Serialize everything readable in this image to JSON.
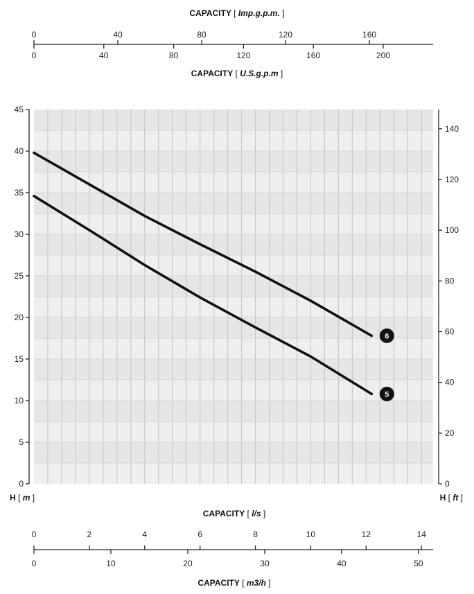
{
  "chart_data": {
    "type": "line",
    "title": "",
    "axes": {
      "imp_gpm": {
        "label_prefix": "CAPACITY",
        "label_unit": "Imp.g.p.m.",
        "ticks": [
          "0",
          "40",
          "80",
          "120",
          "160"
        ],
        "range": [
          0,
          190.4
        ]
      },
      "us_gpm": {
        "label_prefix": "CAPACITY",
        "label_unit": "U.S.g.p.m",
        "ticks": [
          "0",
          "40",
          "80",
          "120",
          "160",
          "200"
        ],
        "range": [
          0,
          228.6
        ]
      },
      "head_m": {
        "label_prefix": "H",
        "label_unit": "m",
        "ticks": [
          "0",
          "5",
          "10",
          "15",
          "20",
          "25",
          "30",
          "35",
          "40",
          "45"
        ],
        "range": [
          0,
          45
        ]
      },
      "head_ft": {
        "label_prefix": "H",
        "label_unit": "ft",
        "ticks": [
          "0",
          "20",
          "40",
          "60",
          "80",
          "100",
          "120",
          "140"
        ],
        "range": [
          0,
          147.6
        ]
      },
      "l_s": {
        "label_prefix": "CAPACITY",
        "label_unit": "l/s",
        "ticks": [
          "0",
          "2",
          "4",
          "6",
          "8",
          "10",
          "12",
          "14"
        ],
        "range": [
          0,
          14.42
        ]
      },
      "m3_h": {
        "label_prefix": "CAPACITY",
        "label_unit": "m3/h",
        "ticks": [
          "0",
          "10",
          "20",
          "30",
          "40",
          "50"
        ],
        "range": [
          0,
          51.9
        ]
      }
    },
    "x_unit": "l/s",
    "y_unit": "m",
    "xlim": [
      0,
      14.42
    ],
    "ylim": [
      0,
      45
    ],
    "grid": true,
    "series": [
      {
        "name": "6",
        "x": [
          0,
          2,
          4,
          6,
          8,
          10,
          12.2
        ],
        "values": [
          39.8,
          36.0,
          32.2,
          28.8,
          25.5,
          22.0,
          17.8
        ]
      },
      {
        "name": "5",
        "x": [
          0,
          2,
          4,
          6,
          8,
          10,
          12.2
        ],
        "values": [
          34.6,
          30.5,
          26.3,
          22.4,
          18.8,
          15.3,
          10.8
        ]
      }
    ]
  }
}
